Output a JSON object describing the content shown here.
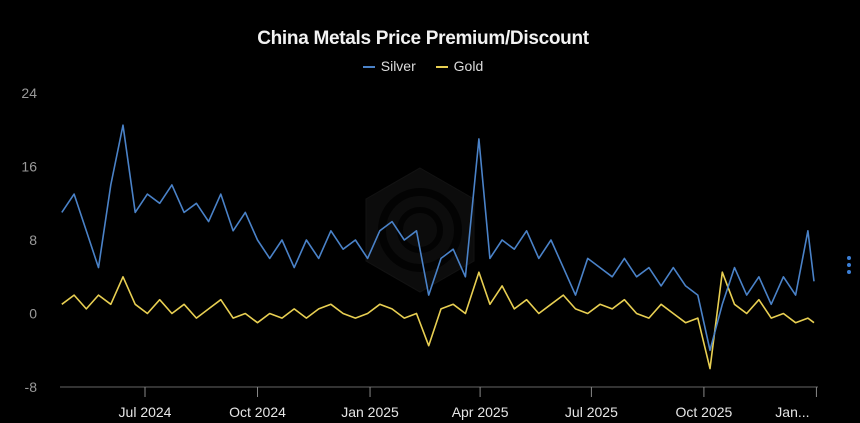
{
  "chart_data": {
    "type": "line",
    "title": "China Metals Price Premium/Discount",
    "xlabel": "",
    "ylabel": "",
    "ylim": [
      -8,
      24
    ],
    "yticks": [
      24,
      16,
      8,
      0,
      -8
    ],
    "xticks": [
      {
        "date": "2024-07-01",
        "label": "Jul 2024"
      },
      {
        "date": "2024-10-01",
        "label": "Oct 2024"
      },
      {
        "date": "2025-01-01",
        "label": "Jan 2025"
      },
      {
        "date": "2025-04-01",
        "label": "Apr 2025"
      },
      {
        "date": "2025-07-01",
        "label": "Jul 2025"
      },
      {
        "date": "2025-10-01",
        "label": "Oct 2025"
      },
      {
        "date": "2026-01-01",
        "label": "Jan..."
      }
    ],
    "grid": false,
    "legend_placement": "top-center",
    "x": [
      "2024-04-24",
      "2024-05-04",
      "2024-05-14",
      "2024-05-24",
      "2024-06-03",
      "2024-06-13",
      "2024-06-23",
      "2024-07-03",
      "2024-07-13",
      "2024-07-23",
      "2024-08-02",
      "2024-08-12",
      "2024-08-22",
      "2024-09-01",
      "2024-09-11",
      "2024-09-21",
      "2024-10-01",
      "2024-10-11",
      "2024-10-21",
      "2024-10-31",
      "2024-11-10",
      "2024-11-20",
      "2024-11-30",
      "2024-12-10",
      "2024-12-20",
      "2024-12-30",
      "2025-01-09",
      "2025-01-19",
      "2025-01-29",
      "2025-02-08",
      "2025-02-18",
      "2025-02-28",
      "2025-03-10",
      "2025-03-20",
      "2025-03-31",
      "2025-04-09",
      "2025-04-19",
      "2025-04-29",
      "2025-05-09",
      "2025-05-19",
      "2025-05-29",
      "2025-06-08",
      "2025-06-18",
      "2025-06-28",
      "2025-07-08",
      "2025-07-18",
      "2025-07-28",
      "2025-08-07",
      "2025-08-17",
      "2025-08-27",
      "2025-09-06",
      "2025-09-16",
      "2025-09-26",
      "2025-10-06",
      "2025-10-16",
      "2025-10-26",
      "2025-11-05",
      "2025-11-15",
      "2025-11-25",
      "2025-12-05",
      "2025-12-15",
      "2025-12-25",
      "2025-12-30"
    ],
    "series": [
      {
        "name": "Silver",
        "color": "#4a82c8",
        "values": [
          11,
          13,
          9,
          5,
          14,
          20.5,
          11,
          13,
          12,
          14,
          11,
          12,
          10,
          13,
          9,
          11,
          8,
          6,
          8,
          5,
          8,
          6,
          9,
          7,
          8,
          6,
          9,
          10,
          8,
          9,
          2,
          6,
          7,
          4,
          19,
          6,
          8,
          7,
          9,
          6,
          8,
          5,
          2,
          6,
          5,
          4,
          6,
          4,
          5,
          3,
          5,
          3,
          2,
          -4,
          1,
          5,
          2,
          4,
          1,
          4,
          2,
          9,
          3.5
        ]
      },
      {
        "name": "Gold",
        "color": "#e8cf52",
        "values": [
          1,
          2,
          0.5,
          2,
          1,
          4,
          1,
          0,
          1.5,
          0,
          1,
          -0.5,
          0.5,
          1.5,
          -0.5,
          0,
          -1,
          0,
          -0.5,
          0.5,
          -0.5,
          0.5,
          1,
          0,
          -0.5,
          0,
          1,
          0.5,
          -0.5,
          0,
          -3.5,
          0.5,
          1,
          0,
          4.5,
          1,
          3,
          0.5,
          1.5,
          0,
          1,
          2,
          0.5,
          0,
          1,
          0.5,
          1.5,
          0,
          -0.5,
          1,
          0,
          -1,
          -0.5,
          -6,
          4.5,
          1,
          0,
          1.5,
          -0.5,
          0,
          -1,
          -0.5,
          -1
        ]
      }
    ]
  },
  "ui": {
    "menu_icon": "vertical-ellipsis-icon",
    "watermark": "hexagon-logo"
  }
}
